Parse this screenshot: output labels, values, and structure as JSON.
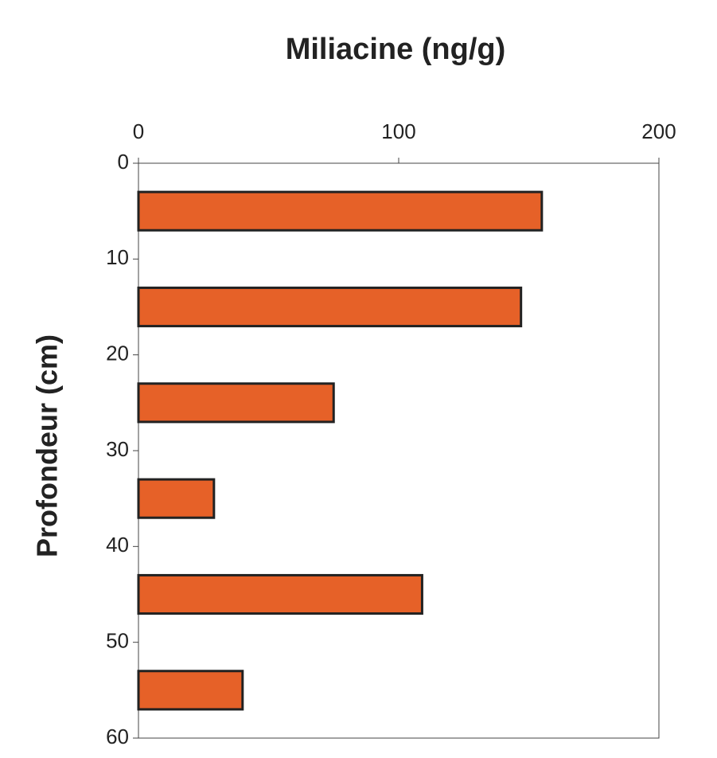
{
  "chart_data": {
    "type": "bar",
    "orientation": "horizontal",
    "title": "Miliacine (ng/g)",
    "y_label": "Profondeur (cm)",
    "depth_top": [
      3,
      13,
      23,
      33,
      43,
      53
    ],
    "depth_bottom": [
      7,
      17,
      27,
      37,
      47,
      57
    ],
    "values": [
      155,
      147,
      75,
      29,
      109,
      40
    ],
    "color": "#e66128",
    "xlim": [
      0,
      200
    ],
    "xticks": [
      0,
      100,
      200
    ],
    "x_axis_position": "top",
    "ylim": [
      0,
      60
    ],
    "yticks": [
      0,
      10,
      20,
      30,
      40,
      50,
      60
    ],
    "y_reversed": true
  }
}
